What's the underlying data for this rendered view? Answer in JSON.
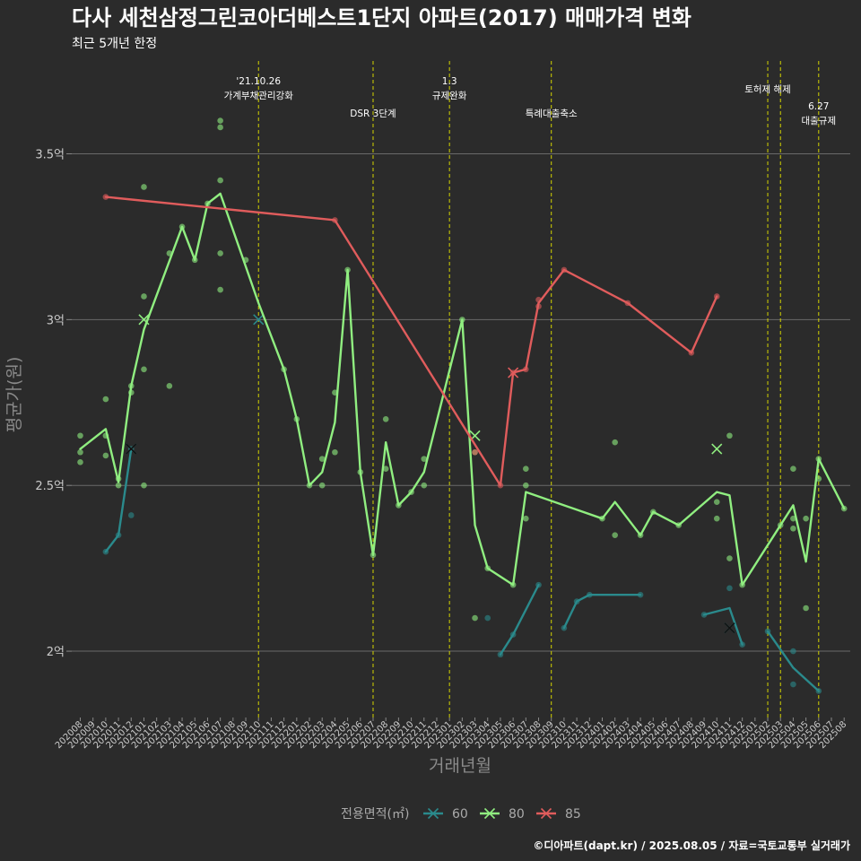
{
  "chart_data": {
    "type": "line",
    "title": "다사 세천삼정그린코아더베스트1단지 아파트(2017) 매매가격 변화",
    "subtitle": "최근 5개년 한정",
    "xlabel": "거래년월",
    "ylabel": "평균가(원)",
    "caption": "©디아파트(dapt.kr) / 2025.08.05 / 자료=국토교통부 실거래가",
    "legend_title": "전용면적(㎡)",
    "legend_position": "bottom",
    "grid": true,
    "ylim": [
      1.8,
      3.78
    ],
    "yticks": [
      {
        "value": 2.0,
        "label": "2억"
      },
      {
        "value": 2.5,
        "label": "2.5억"
      },
      {
        "value": 3.0,
        "label": "3억"
      },
      {
        "value": 3.5,
        "label": "3.5억"
      }
    ],
    "categories": [
      "202008",
      "202009",
      "202010",
      "202011",
      "202012",
      "202101",
      "202102",
      "202103",
      "202104",
      "202105",
      "202106",
      "202107",
      "202108",
      "202109",
      "202110",
      "202111",
      "202112",
      "202201",
      "202202",
      "202203",
      "202204",
      "202205",
      "202206",
      "202207",
      "202208",
      "202209",
      "202210",
      "202211",
      "202212",
      "202301",
      "202302",
      "202303",
      "202304",
      "202305",
      "202306",
      "202307",
      "202308",
      "202309",
      "202310",
      "202311",
      "202312",
      "202401",
      "202402",
      "202403",
      "202404",
      "202405",
      "202406",
      "202407",
      "202408",
      "202409",
      "202410",
      "202411",
      "202412",
      "202501",
      "202502",
      "202503",
      "202504",
      "202505",
      "202506",
      "202507",
      "202508"
    ],
    "events": [
      {
        "month": "202110",
        "lines": [
          "'21.10.26",
          "가계부채관리강화"
        ]
      },
      {
        "month": "202207",
        "lines": [
          "DSR 3단계"
        ]
      },
      {
        "month": "202301",
        "lines": [
          "1.3",
          "규제완화"
        ]
      },
      {
        "month": "202309",
        "lines": [
          "특례대출축소"
        ]
      },
      {
        "month": "202502",
        "lines": [
          "토허제 해제"
        ]
      },
      {
        "month": "202503",
        "lines": []
      },
      {
        "month": "202506",
        "lines": [
          "6.27",
          "대출규제"
        ]
      }
    ],
    "series": [
      {
        "name": "60",
        "color": "#2a8a8c",
        "segments": [
          [
            [
              "202010",
              2.3
            ],
            [
              "202011",
              2.35
            ],
            [
              "202012",
              2.61
            ]
          ],
          [
            [
              "202305",
              1.99
            ],
            [
              "202306",
              2.05
            ],
            [
              "202308",
              2.2
            ]
          ],
          [
            [
              "202310",
              2.07
            ],
            [
              "202311",
              2.15
            ],
            [
              "202312",
              2.17
            ],
            [
              "202404",
              2.17
            ]
          ],
          [
            [
              "202409",
              2.11
            ],
            [
              "202411",
              2.13
            ],
            [
              "202412",
              2.02
            ]
          ],
          [
            [
              "202502",
              2.06
            ],
            [
              "202504",
              1.95
            ],
            [
              "202506",
              1.88
            ]
          ]
        ],
        "points": [
          [
            "202010",
            2.3
          ],
          [
            "202011",
            2.35
          ],
          [
            "202012",
            2.41
          ],
          [
            "202012",
            2.61
          ],
          [
            "202304",
            2.1
          ],
          [
            "202305",
            1.99
          ],
          [
            "202306",
            2.05
          ],
          [
            "202308",
            2.2
          ],
          [
            "202310",
            2.07
          ],
          [
            "202311",
            2.15
          ],
          [
            "202312",
            2.17
          ],
          [
            "202404",
            2.17
          ],
          [
            "202409",
            2.11
          ],
          [
            "202411",
            2.19
          ],
          [
            "202412",
            2.02
          ],
          [
            "202502",
            2.06
          ],
          [
            "202504",
            2.0
          ],
          [
            "202504",
            1.9
          ],
          [
            "202506",
            1.88
          ]
        ],
        "crosses": [
          [
            "202012",
            2.61
          ],
          [
            "202110",
            3.0
          ],
          [
            "202411",
            2.07
          ]
        ]
      },
      {
        "name": "80",
        "color": "#90ee80",
        "segments": [
          [
            [
              "202008",
              2.61
            ],
            [
              "202010",
              2.67
            ],
            [
              "202011",
              2.51
            ],
            [
              "202012",
              2.8
            ],
            [
              "202101",
              2.97
            ],
            [
              "202104",
              3.28
            ],
            [
              "202105",
              3.18
            ],
            [
              "202106",
              3.35
            ],
            [
              "202107",
              3.38
            ],
            [
              "202110",
              3.05
            ],
            [
              "202112",
              2.85
            ],
            [
              "202201",
              2.7
            ],
            [
              "202202",
              2.5
            ],
            [
              "202203",
              2.54
            ],
            [
              "202204",
              2.69
            ],
            [
              "202205",
              3.15
            ],
            [
              "202206",
              2.54
            ],
            [
              "202207",
              2.29
            ],
            [
              "202208",
              2.63
            ],
            [
              "202209",
              2.44
            ],
            [
              "202210",
              2.48
            ],
            [
              "202211",
              2.54
            ],
            [
              "202302",
              3.0
            ],
            [
              "202303",
              2.38
            ],
            [
              "202304",
              2.25
            ],
            [
              "202306",
              2.2
            ],
            [
              "202307",
              2.48
            ],
            [
              "202401",
              2.4
            ],
            [
              "202402",
              2.45
            ],
            [
              "202404",
              2.35
            ],
            [
              "202405",
              2.42
            ],
            [
              "202407",
              2.38
            ],
            [
              "202410",
              2.48
            ],
            [
              "202411",
              2.47
            ],
            [
              "202412",
              2.2
            ],
            [
              "202503",
              2.38
            ],
            [
              "202504",
              2.44
            ],
            [
              "202505",
              2.27
            ],
            [
              "202506",
              2.58
            ],
            [
              "202508",
              2.43
            ]
          ]
        ],
        "points": [
          [
            "202008",
            2.65
          ],
          [
            "202008",
            2.57
          ],
          [
            "202008",
            2.6
          ],
          [
            "202010",
            2.76
          ],
          [
            "202010",
            2.65
          ],
          [
            "202010",
            2.59
          ],
          [
            "202011",
            2.5
          ],
          [
            "202011",
            2.52
          ],
          [
            "202012",
            2.78
          ],
          [
            "202012",
            2.8
          ],
          [
            "202101",
            3.4
          ],
          [
            "202101",
            3.07
          ],
          [
            "202101",
            2.85
          ],
          [
            "202101",
            2.5
          ],
          [
            "202103",
            3.2
          ],
          [
            "202103",
            2.8
          ],
          [
            "202104",
            3.28
          ],
          [
            "202105",
            3.18
          ],
          [
            "202106",
            3.35
          ],
          [
            "202107",
            3.6
          ],
          [
            "202107",
            3.58
          ],
          [
            "202107",
            3.42
          ],
          [
            "202107",
            3.2
          ],
          [
            "202107",
            3.09
          ],
          [
            "202109",
            3.18
          ],
          [
            "202112",
            2.85
          ],
          [
            "202201",
            2.7
          ],
          [
            "202202",
            2.5
          ],
          [
            "202203",
            2.58
          ],
          [
            "202203",
            2.5
          ],
          [
            "202204",
            2.78
          ],
          [
            "202204",
            2.6
          ],
          [
            "202205",
            3.15
          ],
          [
            "202206",
            2.54
          ],
          [
            "202207",
            2.29
          ],
          [
            "202208",
            2.7
          ],
          [
            "202208",
            2.55
          ],
          [
            "202209",
            2.44
          ],
          [
            "202210",
            2.48
          ],
          [
            "202211",
            2.58
          ],
          [
            "202211",
            2.5
          ],
          [
            "202302",
            3.0
          ],
          [
            "202303",
            2.1
          ],
          [
            "202303",
            2.6
          ],
          [
            "202304",
            2.25
          ],
          [
            "202306",
            2.2
          ],
          [
            "202307",
            2.55
          ],
          [
            "202307",
            2.5
          ],
          [
            "202307",
            2.4
          ],
          [
            "202401",
            2.4
          ],
          [
            "202402",
            2.63
          ],
          [
            "202402",
            2.35
          ],
          [
            "202404",
            2.35
          ],
          [
            "202405",
            2.42
          ],
          [
            "202407",
            2.38
          ],
          [
            "202410",
            2.45
          ],
          [
            "202410",
            2.4
          ],
          [
            "202411",
            2.65
          ],
          [
            "202411",
            2.28
          ],
          [
            "202412",
            2.2
          ],
          [
            "202503",
            2.38
          ],
          [
            "202504",
            2.55
          ],
          [
            "202504",
            2.4
          ],
          [
            "202504",
            2.37
          ],
          [
            "202505",
            2.4
          ],
          [
            "202505",
            2.13
          ],
          [
            "202506",
            2.58
          ],
          [
            "202506",
            2.52
          ],
          [
            "202508",
            2.43
          ]
        ],
        "crosses": [
          [
            "202101",
            3.0
          ],
          [
            "202303",
            2.65
          ],
          [
            "202410",
            2.61
          ]
        ]
      },
      {
        "name": "85",
        "color": "#e05c5c",
        "segments": [
          [
            [
              "202010",
              3.37
            ],
            [
              "202204",
              3.3
            ],
            [
              "202305",
              2.5
            ],
            [
              "202306",
              2.84
            ],
            [
              "202307",
              2.85
            ],
            [
              "202308",
              3.05
            ],
            [
              "202310",
              3.15
            ],
            [
              "202403",
              3.05
            ],
            [
              "202408",
              2.9
            ],
            [
              "202410",
              3.07
            ]
          ]
        ],
        "points": [
          [
            "202010",
            3.37
          ],
          [
            "202204",
            3.3
          ],
          [
            "202303",
            2.6
          ],
          [
            "202305",
            2.5
          ],
          [
            "202306",
            2.84
          ],
          [
            "202307",
            2.85
          ],
          [
            "202308",
            3.06
          ],
          [
            "202308",
            3.04
          ],
          [
            "202310",
            3.15
          ],
          [
            "202403",
            3.05
          ],
          [
            "202408",
            2.9
          ],
          [
            "202410",
            3.07
          ]
        ],
        "crosses": [
          [
            "202306",
            2.84
          ]
        ]
      }
    ]
  }
}
